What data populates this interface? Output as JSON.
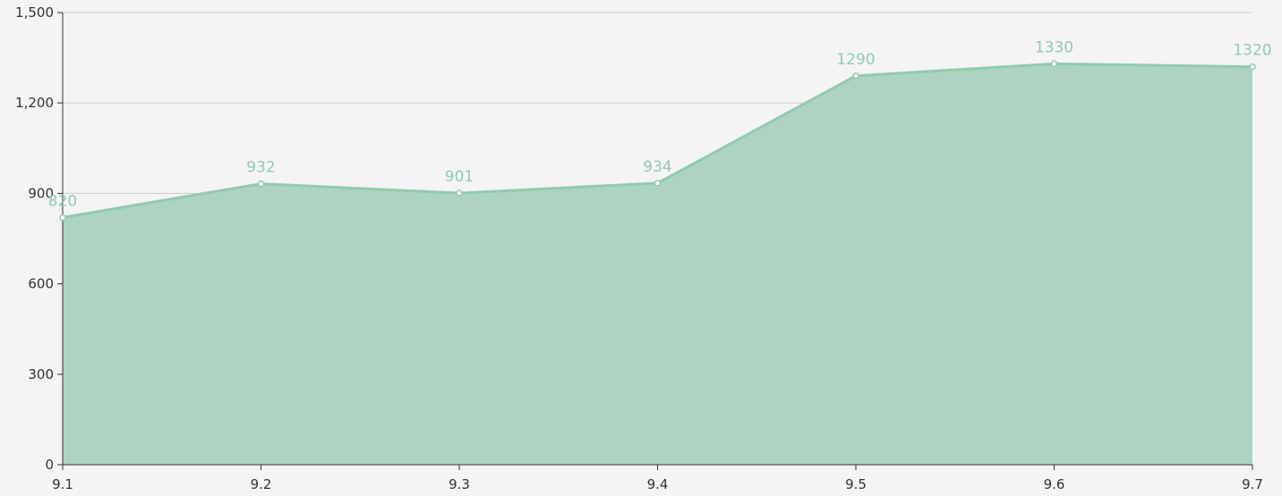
{
  "chart_data": {
    "type": "area",
    "title": "",
    "xlabel": "",
    "ylabel": "",
    "categories": [
      "9.1",
      "9.2",
      "9.3",
      "9.4",
      "9.5",
      "9.6",
      "9.7"
    ],
    "series": [
      {
        "values": [
          820,
          932,
          901,
          934,
          1290,
          1330,
          1320
        ]
      }
    ],
    "data_labels": [
      "820",
      "932",
      "901",
      "934",
      "1290",
      "1330",
      "1320"
    ],
    "ylim": [
      0,
      1500
    ],
    "y_ticks": [
      0,
      300,
      600,
      900,
      1200,
      1500
    ],
    "y_tick_labels": [
      "0",
      "300",
      "600",
      "900",
      "1,200",
      "1,500"
    ],
    "grid": true,
    "legend": "none",
    "colors": {
      "area_fill": "#acd4c1",
      "line": "#93c9b0",
      "label": "#93c9b0",
      "point_fill": "#ffffff",
      "axis": "#333333",
      "grid": "#cccccc"
    }
  }
}
